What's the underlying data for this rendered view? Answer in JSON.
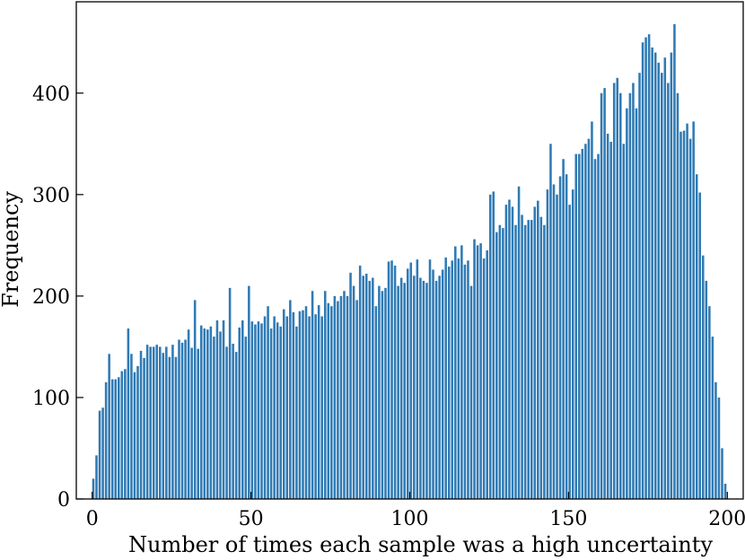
{
  "chart_data": {
    "type": "bar",
    "xlabel": "Number of times each sample was a high uncertainty",
    "ylabel": "Frequency",
    "xlim": [
      -5,
      205
    ],
    "ylim": [
      0,
      490
    ],
    "xticks": [
      0,
      50,
      100,
      150,
      200
    ],
    "yticks": [
      0,
      100,
      200,
      300,
      400
    ],
    "xtick_labels": [
      "0",
      "50",
      "100",
      "150",
      "200"
    ],
    "ytick_labels": [
      "0",
      "100",
      "200",
      "300",
      "400"
    ],
    "grid": false,
    "bar_color": "#2f7ab4",
    "x_start": 0,
    "bin_width": 1,
    "values": [
      20,
      43,
      87,
      90,
      115,
      143,
      118,
      118,
      120,
      126,
      128,
      168,
      143,
      125,
      131,
      146,
      139,
      152,
      150,
      150,
      152,
      150,
      144,
      150,
      140,
      152,
      140,
      157,
      154,
      157,
      167,
      149,
      196,
      148,
      171,
      168,
      167,
      170,
      160,
      176,
      165,
      176,
      150,
      208,
      153,
      145,
      169,
      176,
      160,
      210,
      175,
      172,
      175,
      173,
      180,
      190,
      168,
      180,
      174,
      170,
      187,
      180,
      196,
      184,
      170,
      185,
      186,
      190,
      180,
      205,
      182,
      191,
      180,
      205,
      193,
      190,
      200,
      195,
      200,
      205,
      200,
      223,
      210,
      196,
      230,
      220,
      222,
      215,
      218,
      190,
      210,
      205,
      208,
      234,
      235,
      230,
      210,
      218,
      213,
      227,
      233,
      220,
      236,
      218,
      215,
      213,
      236,
      226,
      215,
      220,
      226,
      238,
      229,
      235,
      249,
      237,
      250,
      231,
      235,
      210,
      256,
      250,
      252,
      237,
      245,
      300,
      303,
      263,
      270,
      267,
      290,
      295,
      288,
      270,
      308,
      280,
      270,
      275,
      275,
      288,
      294,
      278,
      270,
      305,
      350,
      310,
      300,
      318,
      335,
      320,
      290,
      305,
      340,
      340,
      345,
      350,
      355,
      372,
      335,
      340,
      400,
      405,
      360,
      352,
      410,
      415,
      400,
      350,
      385,
      400,
      410,
      385,
      420,
      450,
      455,
      458,
      445,
      440,
      430,
      420,
      435,
      410,
      440,
      468,
      400,
      362,
      363,
      370,
      355,
      372,
      320,
      302,
      240,
      215,
      190,
      160,
      115,
      100,
      50,
      15
    ]
  }
}
